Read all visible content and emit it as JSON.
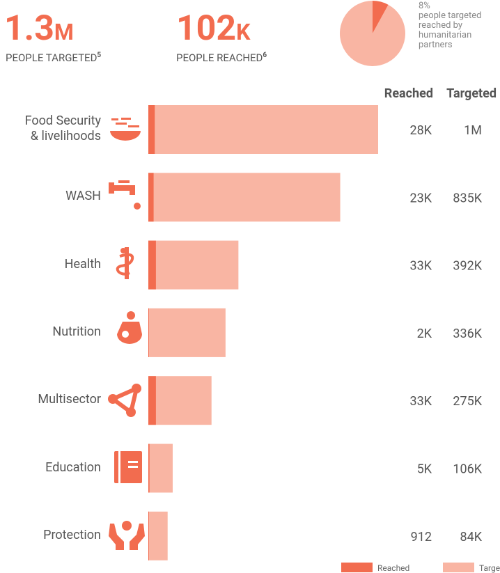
{
  "stats": [
    {
      "number": "1.3",
      "unit": "M",
      "label": "PEOPLE TARGETED",
      "note": "5"
    },
    {
      "number": "102",
      "unit": "K",
      "label": "PEOPLE REACHED",
      "note": "6"
    }
  ],
  "chart_data": [
    {
      "type": "pie",
      "values": [
        8,
        92
      ],
      "value_labels": [
        "8%",
        null
      ],
      "colors": [
        "#f26c4f",
        "#f9b5a3"
      ],
      "annotation": "people targeted reached by humanitarian partners"
    },
    {
      "type": "hbar",
      "column_headers": [
        "Reached",
        "Targeted"
      ],
      "categories": [
        "Food Security\n& livelihoods",
        "WASH",
        "Health",
        "Nutrition",
        "Multisector",
        "Education",
        "Protection"
      ],
      "series": [
        {
          "name": "Reached",
          "color": "#f26c4f",
          "values": [
            28000,
            23000,
            33000,
            2000,
            33000,
            5000,
            912
          ],
          "value_labels": [
            "28K",
            "23K",
            "33K",
            "2K",
            "33K",
            "5K",
            "912"
          ]
        },
        {
          "name": "Targeted",
          "color": "#f9b5a3",
          "values": [
            1000000,
            835000,
            392000,
            336000,
            275000,
            106000,
            84000
          ],
          "value_labels": [
            "1M",
            "835K",
            "392K",
            "336K",
            "275K",
            "106K",
            "84K"
          ]
        }
      ],
      "xlim": [
        0,
        1000000
      ]
    }
  ]
}
